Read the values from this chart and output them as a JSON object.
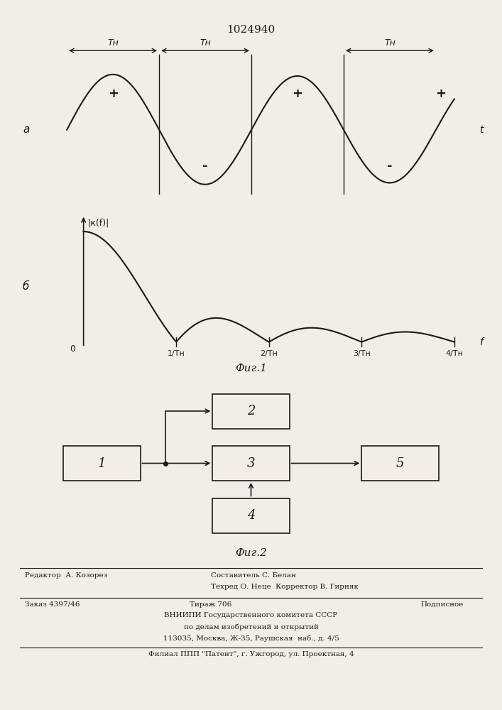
{
  "title": "1024940",
  "title_fontsize": 11,
  "fig1_caption": "Фиг.1",
  "fig2_caption": "Фиг.2",
  "background_color": "#f2ede6",
  "line_color": "#1a1a1a",
  "axis_label_a": "а",
  "axis_label_b": "б",
  "t_label": "t",
  "f_label": "f",
  "y_label_b": "|к(f)|",
  "zero_label": "0",
  "T_labels": [
    "Тн",
    "Тн",
    "Тн"
  ],
  "freq_ticks": [
    "1/Тн",
    "2/Тн",
    "3/Тн",
    "4/Тн"
  ],
  "block_labels": [
    "1",
    "2",
    "3",
    "4",
    "5"
  ],
  "editor_line": "Редактор  А. Козорез",
  "composer_line": "Составитель С. Белан",
  "techred_line": "Техред О. Неце  Корректор В. Гирняк",
  "order_line": "Заказ 4397/46",
  "tiraj_line": "Тираж 706",
  "podpisnoe_line": "Подписное",
  "vniip_line": "ВНИИПИ Государственного комитета СССР",
  "po_delam_line": "по делам изобретений и открытий",
  "address_line": "113035, Москва, Ж-35, Раушская  наб., д. 4/5",
  "filial_line": "Филиал ППП \"Патент\", г. Ужгород, ул. Проектная, 4"
}
